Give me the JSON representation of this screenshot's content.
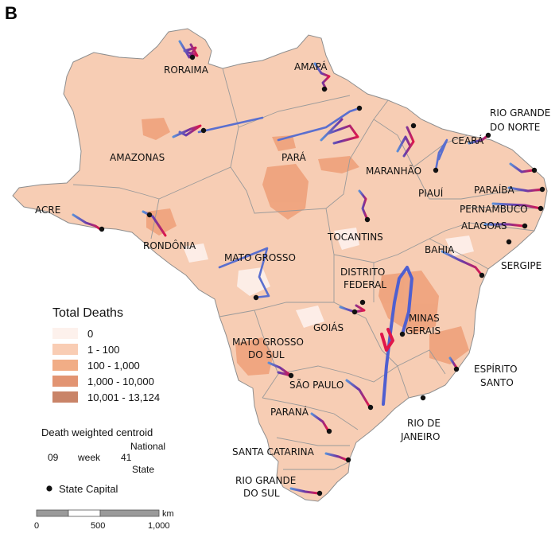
{
  "panel_label": "B",
  "states": [
    {
      "id": "roraima",
      "name": "RORAIMA"
    },
    {
      "id": "amapa",
      "name": "AMAPÁ"
    },
    {
      "id": "amazonas",
      "name": "AMAZONAS"
    },
    {
      "id": "para",
      "name": "PARÁ"
    },
    {
      "id": "acre",
      "name": "ACRE"
    },
    {
      "id": "rondonia",
      "name": "RONDÔNIA"
    },
    {
      "id": "mato-grosso",
      "name": "MATO GROSSO"
    },
    {
      "id": "maranhao",
      "name": "MARANHÃO"
    },
    {
      "id": "piaui",
      "name": "PIAUÍ"
    },
    {
      "id": "ceara",
      "name": "CEARÁ"
    },
    {
      "id": "rgn-1",
      "name": "RIO GRANDE"
    },
    {
      "id": "rgn-2",
      "name": "DO NORTE"
    },
    {
      "id": "paraiba",
      "name": "PARAÍBA"
    },
    {
      "id": "pernambuco",
      "name": "PERNAMBUCO"
    },
    {
      "id": "alagoas",
      "name": "ALAGOAS"
    },
    {
      "id": "sergipe",
      "name": "SERGIPE"
    },
    {
      "id": "bahia",
      "name": "BAHIA"
    },
    {
      "id": "tocantins",
      "name": "TOCANTINS"
    },
    {
      "id": "df-1",
      "name": "DISTRITO"
    },
    {
      "id": "df-2",
      "name": "FEDERAL"
    },
    {
      "id": "goias",
      "name": "GOIÁS"
    },
    {
      "id": "mg-1",
      "name": "MINAS"
    },
    {
      "id": "mg-2",
      "name": "GERAIS"
    },
    {
      "id": "ms-1",
      "name": "MATO GROSSO"
    },
    {
      "id": "ms-2",
      "name": "DO SUL"
    },
    {
      "id": "es-1",
      "name": "ESPÍRITO"
    },
    {
      "id": "es-2",
      "name": "SANTO"
    },
    {
      "id": "sao-paulo",
      "name": "SÃO PAULO"
    },
    {
      "id": "rj-1",
      "name": "RIO DE"
    },
    {
      "id": "rj-2",
      "name": "JANEIRO"
    },
    {
      "id": "parana",
      "name": "PARANÁ"
    },
    {
      "id": "santa-catarina",
      "name": "SANTA CATARINA"
    },
    {
      "id": "rgs-1",
      "name": "RIO GRANDE"
    },
    {
      "id": "rgs-2",
      "name": "DO SUL"
    }
  ],
  "legend": {
    "title": "Total Deaths",
    "classes": [
      {
        "label": "0",
        "color": "#fdf1ec"
      },
      {
        "label": "1 - 100",
        "color": "#f9cdb4"
      },
      {
        "label": "100 - 1,000",
        "color": "#f1ad86"
      },
      {
        "label": "1,000 - 10,000",
        "color": "#e29472"
      },
      {
        "label": "10,001 - 13,124",
        "color": "#c98468"
      }
    ],
    "centroid_title": "Death weighted centroid",
    "national_label": "National",
    "state_label": "State",
    "week_start": "09",
    "week_word": "week",
    "week_end": "41",
    "capital_label": "State Capital",
    "colors": {
      "start": "#5b8fd8",
      "mid": "#6a3aa8",
      "end": "#e0164a"
    }
  },
  "scale_bar": {
    "unit": "km",
    "ticks": [
      "0",
      "500",
      "1,000"
    ]
  }
}
